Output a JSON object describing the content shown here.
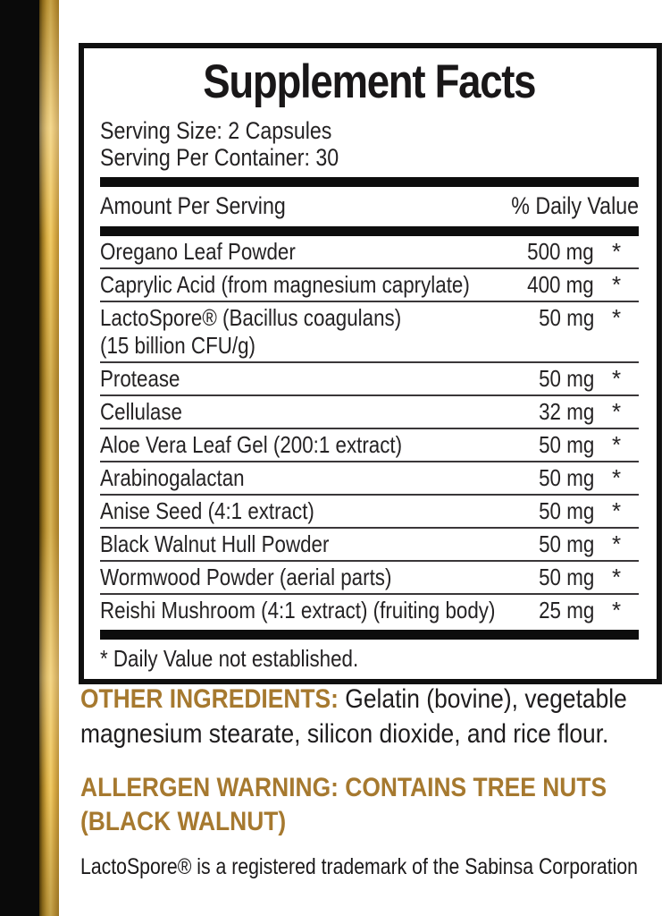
{
  "colors": {
    "gold_accent": "#A6792F",
    "gold_bar_mid": "#D9AE45",
    "panel_border": "#101010"
  },
  "facts": {
    "title": "Supplement Facts",
    "serving_size": "Serving Size: 2 Capsules",
    "serving_per_container": "Serving Per Container: 30",
    "columns": {
      "left": "Amount Per Serving",
      "right": "% Daily Value"
    },
    "rows": [
      {
        "name": "Oregano Leaf Powder",
        "amount": "500 mg",
        "daily_value": "*"
      },
      {
        "name": "Caprylic Acid (from magnesium caprylate)",
        "amount": "400 mg",
        "daily_value": "*"
      },
      {
        "name": "LactoSpore® (Bacillus coagulans)",
        "name_line2": "(15 billion CFU/g)",
        "amount": "50 mg",
        "daily_value": "*"
      },
      {
        "name": "Protease",
        "amount": "50 mg",
        "daily_value": "*"
      },
      {
        "name": "Cellulase",
        "amount": "32 mg",
        "daily_value": "*"
      },
      {
        "name": "Aloe Vera Leaf Gel (200:1 extract)",
        "amount": "50 mg",
        "daily_value": "*"
      },
      {
        "name": "Arabinogalactan",
        "amount": "50 mg",
        "daily_value": "*"
      },
      {
        "name": "Anise Seed (4:1 extract)",
        "amount": "50 mg",
        "daily_value": "*"
      },
      {
        "name": "Black Walnut Hull Powder",
        "amount": "50 mg",
        "daily_value": "*"
      },
      {
        "name": "Wormwood Powder (aerial parts)",
        "amount": "50 mg",
        "daily_value": "*"
      },
      {
        "name": "Reishi Mushroom (4:1 extract) (fruiting body)",
        "amount": "25 mg",
        "daily_value": "*"
      }
    ],
    "footnote": "* Daily Value not established."
  },
  "other_ingredients": {
    "label": "OTHER INGREDIENTS:",
    "text_line1": "Gelatin (bovine), vegetable",
    "text_line2": "magnesium stearate, silicon dioxide, and rice flour."
  },
  "allergen": {
    "line1": "ALLERGEN WARNING: CONTAINS TREE NUTS",
    "line2": "(BLACK WALNUT)"
  },
  "trademark": "LactoSpore® is a registered trademark of the Sabinsa Corporation"
}
